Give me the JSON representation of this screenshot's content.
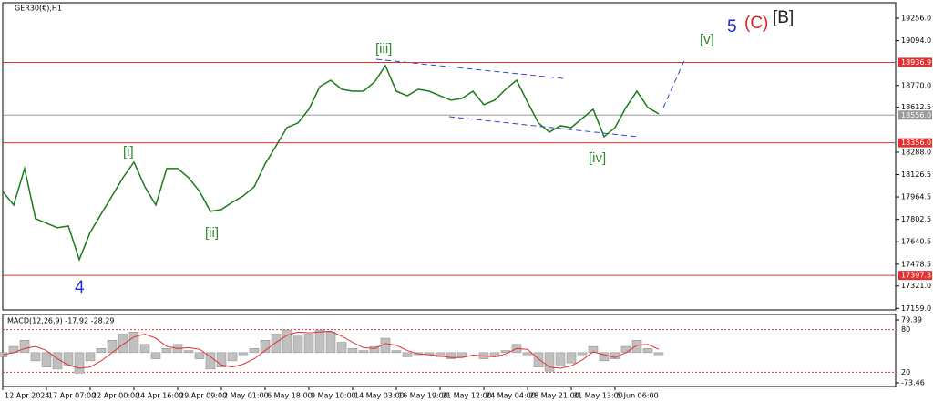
{
  "chart_data": [
    {
      "type": "line",
      "title": "GER30(€),H1",
      "color": "#1a7a1a",
      "categories": [
        "12 Apr 2024",
        null,
        null,
        null,
        "17 Apr 07:00",
        null,
        null,
        null,
        "22 Apr 00:00",
        null,
        null,
        null,
        "24 Apr 16:00",
        null,
        null,
        null,
        "29 Apr 09:00",
        null,
        null,
        null,
        "2 May 01:00",
        null,
        null,
        null,
        "6 May 18:00",
        null,
        null,
        null,
        "9 May 10:00",
        null,
        null,
        null,
        "14 May 03:00",
        null,
        null,
        null,
        "16 May 19:00",
        null,
        null,
        null,
        "21 May 12:00",
        null,
        null,
        null,
        "24 May 04:00",
        null,
        null,
        null,
        "28 May 21:00",
        null,
        null,
        null,
        "31 May 13:00",
        null,
        null,
        null,
        "5 Jun 06:00",
        null,
        null,
        null,
        null
      ],
      "values": [
        18005,
        17906,
        18170,
        17808,
        17775,
        17742,
        17755,
        17512,
        17709,
        17841,
        17972,
        18104,
        18216,
        18038,
        17906,
        18170,
        18170,
        18104,
        18005,
        17860,
        17874,
        17926,
        17972,
        18038,
        18203,
        18334,
        18466,
        18499,
        18598,
        18762,
        18808,
        18743,
        18729,
        18729,
        18795,
        18914,
        18729,
        18696,
        18743,
        18729,
        18696,
        18664,
        18677,
        18729,
        18631,
        18664,
        18743,
        18808,
        18650,
        18499,
        18433,
        18479,
        18466,
        18532,
        18598,
        18400,
        18466,
        18611,
        18729,
        18611,
        18565
      ],
      "ylim": [
        17148,
        19368
      ],
      "yticks": [
        {
          "value": 19256,
          "label": "19256.0"
        },
        {
          "value": 19094,
          "label": "19094.0"
        },
        {
          "value": 18770,
          "label": "18770.0"
        },
        18612.5,
        {
          "value": 18288,
          "label": "18288.0"
        },
        18126.5,
        17964.5,
        17802.5,
        17640.5,
        17478.5,
        {
          "value": 17321,
          "label": "17321.0"
        },
        {
          "value": 17159,
          "label": "17159.0"
        }
      ],
      "levels": [
        {
          "value": 18936.9,
          "color": "#e03030"
        },
        {
          "value": 18556,
          "label": "18556.0",
          "color": "#9a9a9a"
        },
        {
          "value": 18356,
          "label": "18356.0",
          "color": "#e03030"
        },
        {
          "value": 17397.3,
          "color": "#e03030"
        }
      ],
      "annotations": [
        "[iii]",
        "[i]",
        "[ii]",
        "[iv]",
        "[v]",
        "4",
        "5",
        "(C)",
        "[B]"
      ]
    },
    {
      "type": "bar",
      "title": "MACD(12,26,9) -17.92 -28.29",
      "color": "#c0c0c0",
      "values": [
        -10,
        15,
        30,
        -20,
        -35,
        -40,
        -30,
        -50,
        -20,
        10,
        30,
        45,
        50,
        20,
        -15,
        10,
        20,
        5,
        -15,
        -40,
        -35,
        -20,
        -5,
        10,
        30,
        45,
        55,
        40,
        45,
        55,
        50,
        25,
        10,
        5,
        15,
        35,
        5,
        -10,
        -5,
        -5,
        -10,
        -15,
        -10,
        0,
        -15,
        -10,
        5,
        20,
        -5,
        -35,
        -45,
        -30,
        -25,
        -5,
        15,
        -20,
        -15,
        15,
        30,
        10,
        -5
      ],
      "signal_values": [
        -5,
        0,
        10,
        15,
        5,
        -15,
        -30,
        -38,
        -35,
        -20,
        0,
        20,
        38,
        45,
        35,
        15,
        10,
        12,
        8,
        -10,
        -30,
        -35,
        -28,
        -15,
        5,
        25,
        42,
        50,
        48,
        50,
        52,
        40,
        25,
        12,
        10,
        22,
        18,
        5,
        -3,
        -5,
        -8,
        -12,
        -12,
        -6,
        -8,
        -10,
        -3,
        10,
        8,
        -15,
        -35,
        -38,
        -32,
        -18,
        2,
        -5,
        -12,
        0,
        18,
        20,
        8
      ],
      "signal_color": "#e03030",
      "ylim": [
        -73.46,
        79.39
      ],
      "yticks": [
        79.39,
        -73.46
      ],
      "y2lim": [
        0,
        100
      ],
      "y2ticks": [
        80,
        20
      ]
    }
  ]
}
